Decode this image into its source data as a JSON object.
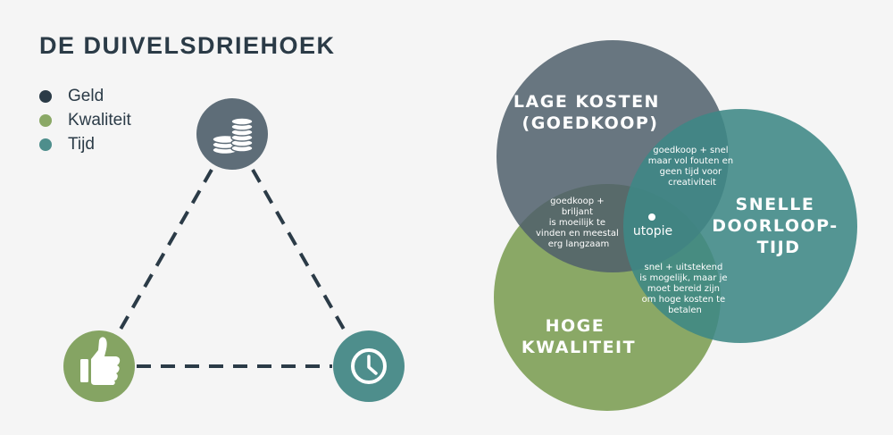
{
  "title": "DE DUIVELSDRIEHOEK",
  "legend": [
    {
      "label": "Geld",
      "color": "#2b3b47"
    },
    {
      "label": "Kwaliteit",
      "color": "#8aa866"
    },
    {
      "label": "Tijd",
      "color": "#4e8e8c"
    }
  ],
  "triangle": {
    "top_icon": "coins-icon",
    "left_icon": "thumbs-up-icon",
    "right_icon": "clock-icon",
    "colors": {
      "money": "#5e6d78",
      "quality": "#85a463",
      "time": "#4e8e8c",
      "line": "#2b3b47"
    }
  },
  "venn": {
    "cost_label": [
      "LAGE KOSTEN",
      "(GOEDKOOP)"
    ],
    "time_label": [
      "SNELLE",
      "DOORLOOP-",
      "TIJD"
    ],
    "quality_label": [
      "HOGE",
      "KWALITEIT"
    ],
    "cost_time": [
      "goedkoop + snel",
      "maar vol fouten en",
      "geen tijd voor",
      "creativiteit"
    ],
    "cost_quality": [
      "goedkoop +",
      "briljant",
      "is moeilijk te",
      "vinden en meestal",
      "erg langzaam"
    ],
    "time_quality": [
      "snel + uitstekend",
      "is mogelijk, maar je",
      "moet bereid zijn",
      "om hoge kosten te",
      "betalen"
    ],
    "center": "utopie",
    "colors": {
      "cost": "#5e6d78",
      "time": "#4e8e8c",
      "quality": "#8aa866"
    }
  }
}
